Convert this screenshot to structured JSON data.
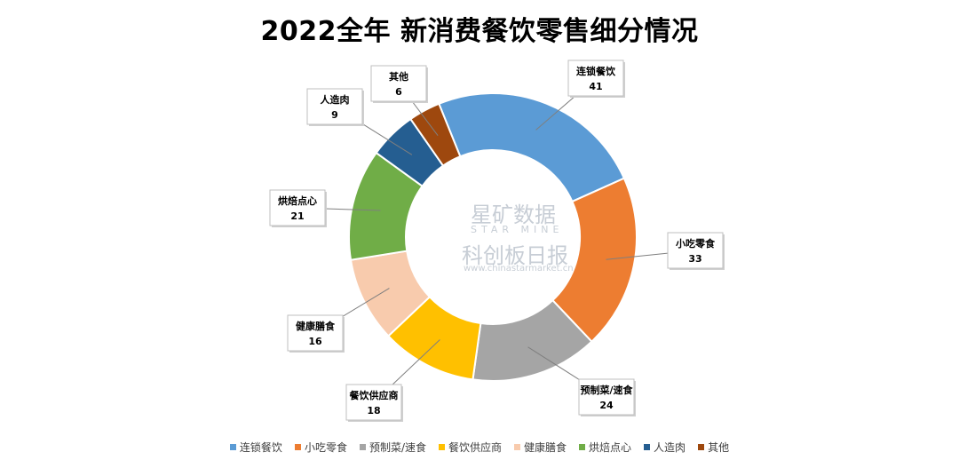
{
  "chart_data": {
    "type": "pie",
    "title": "2022全年 新消费餐饮零售细分情况",
    "categories": [
      "连锁餐饮",
      "小吃零食",
      "预制菜/速食",
      "餐饮供应商",
      "健康膳食",
      "烘焙点心",
      "人造肉",
      "其他"
    ],
    "values": [
      41,
      33,
      24,
      18,
      16,
      21,
      9,
      6
    ],
    "colors": [
      "#5B9BD5",
      "#ED7D31",
      "#A5A5A5",
      "#FFC000",
      "#F8CBAD",
      "#70AD47",
      "#255E91",
      "#9E480E"
    ],
    "legend_position": "bottom",
    "donut": true
  },
  "watermark": {
    "brand_cn": "星矿数据",
    "brand_en": "STAR MINE",
    "name": "科创板日报",
    "url": "www.chinastarmarket.cn"
  }
}
